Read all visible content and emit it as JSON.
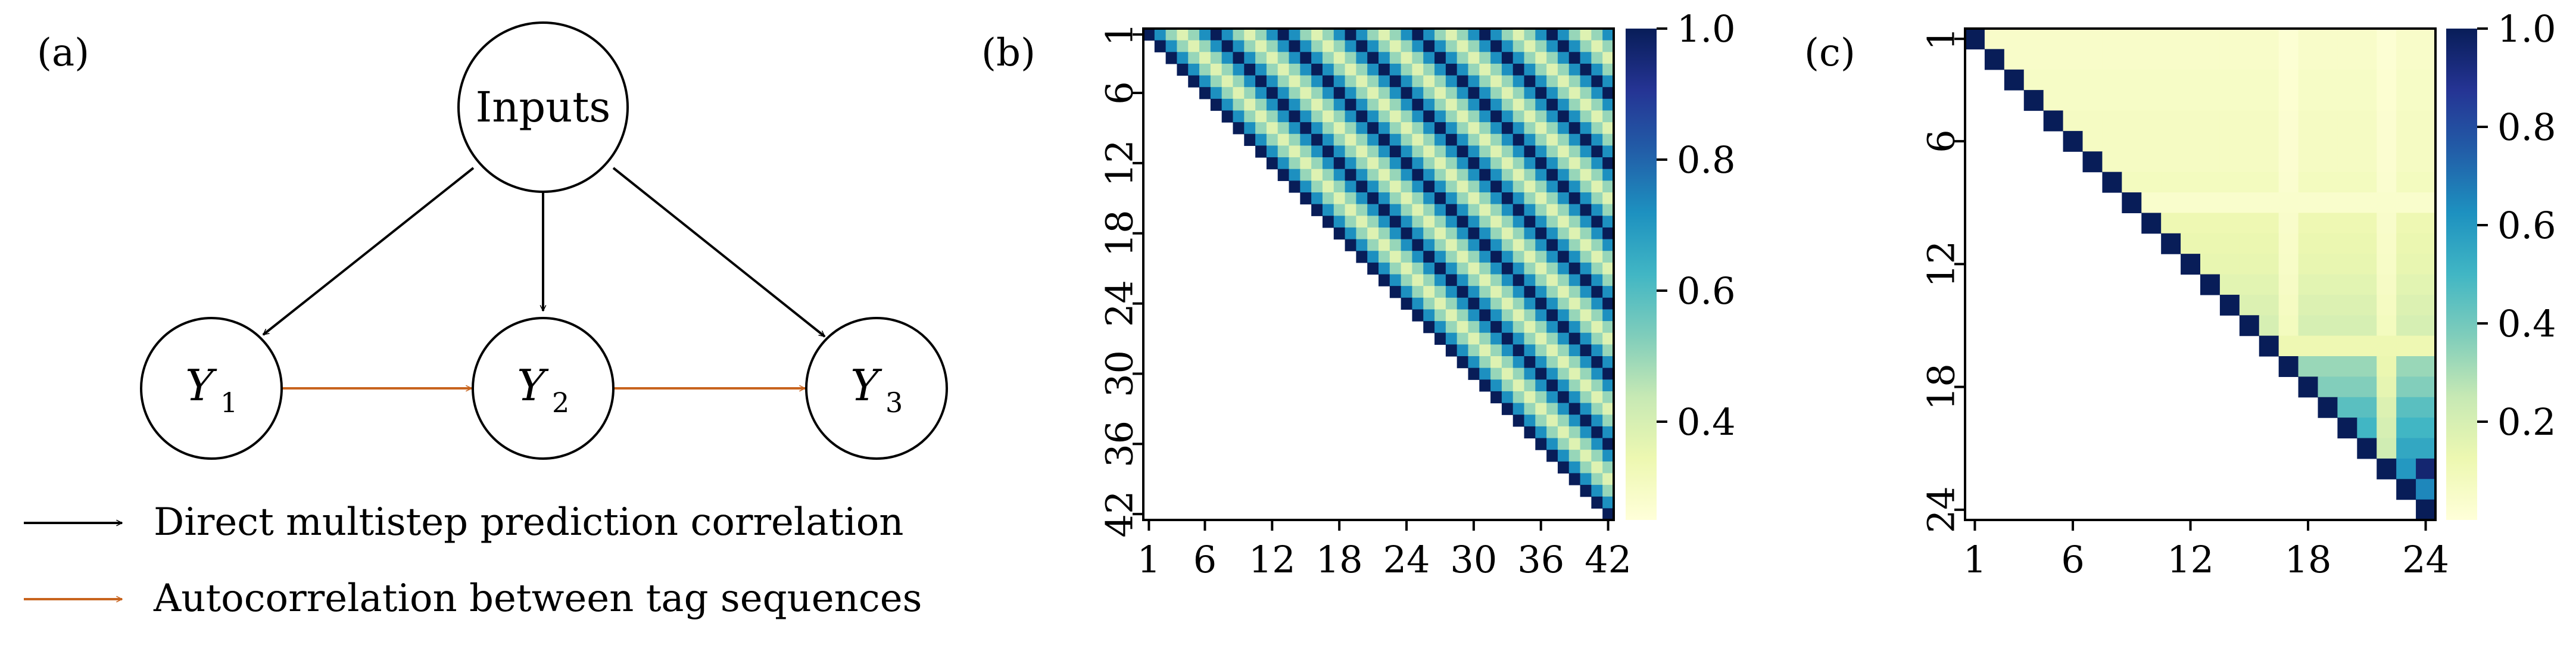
{
  "panels": {
    "a": "(a)",
    "b": "(b)",
    "c": "(c)"
  },
  "diagram": {
    "nodes": {
      "inputs": "Inputs",
      "y1": {
        "symbol": "Y",
        "sub": "1"
      },
      "y2": {
        "symbol": "Y",
        "sub": "2"
      },
      "y3": {
        "symbol": "Y",
        "sub": "3"
      }
    },
    "legend": [
      {
        "label": "Direct multistep prediction correlation",
        "color": "#000000"
      },
      {
        "label": "Autocorrelation between tag sequences",
        "color": "#c8641e"
      }
    ]
  },
  "chart_data": [
    {
      "type": "heatmap",
      "panel": "(b)",
      "n": 42,
      "triangle": "upper",
      "pattern": "periodic",
      "period": 6,
      "xticks": [
        "1",
        "6",
        "12",
        "18",
        "24",
        "30",
        "36",
        "42"
      ],
      "yticks": [
        "1",
        "6",
        "12",
        "18",
        "24",
        "30",
        "36",
        "42"
      ],
      "colorbar": {
        "min": 0.25,
        "max": 1.0,
        "ticks": [
          "0.4",
          "0.6",
          "0.8",
          "1.0"
        ],
        "colormap": "YlGnBu"
      },
      "value_by_lag_mod_6": [
        1.0,
        0.72,
        0.5,
        0.38,
        0.5,
        0.72
      ]
    },
    {
      "type": "heatmap",
      "panel": "(c)",
      "n": 24,
      "triangle": "upper",
      "pattern": "block",
      "xticks": [
        "1",
        "6",
        "12",
        "18",
        "24"
      ],
      "yticks": [
        "1",
        "6",
        "12",
        "18",
        "24"
      ],
      "colorbar": {
        "min": 0.0,
        "max": 1.0,
        "ticks": [
          "0.2",
          "0.4",
          "0.6",
          "0.8",
          "1.0"
        ],
        "colormap": "YlGnBu"
      },
      "diagonal_value": 1.0,
      "row_base_values": [
        0.05,
        0.05,
        0.06,
        0.06,
        0.07,
        0.07,
        0.07,
        0.08,
        0.1,
        0.12,
        0.13,
        0.14,
        0.16,
        0.18,
        0.2,
        0.3,
        0.33,
        0.37,
        0.45,
        0.5,
        0.55,
        0.6,
        0.65,
        1.0
      ],
      "light_rows": [
        8,
        15
      ],
      "light_cols": [
        16,
        21
      ],
      "highlights": [
        {
          "row": 21,
          "col": 23,
          "value": 0.95
        }
      ]
    }
  ]
}
